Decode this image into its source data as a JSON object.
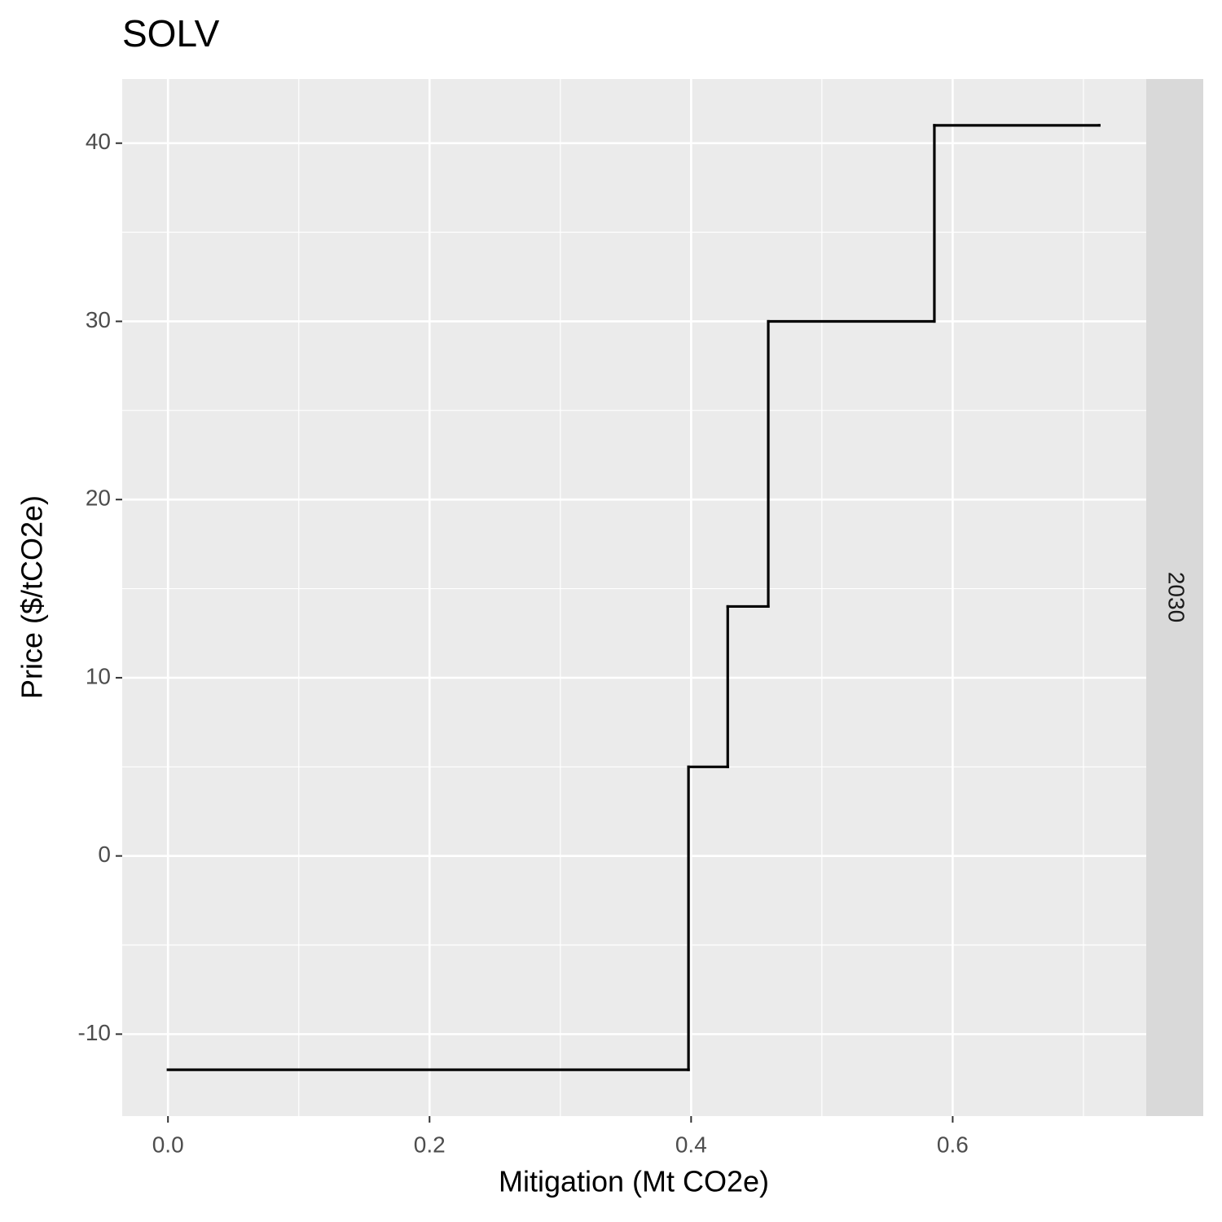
{
  "chart_data": {
    "type": "step",
    "step": "hv",
    "title": "SOLV",
    "x_label": "Mitigation (Mt CO2e)",
    "y_label": "Price ($/tCO2e)",
    "facet": "2030",
    "x": [
      0,
      0.398,
      0.428,
      0.459,
      0.586,
      0.712
    ],
    "series": [
      {
        "color": "#000000",
        "values": [
          -12,
          5,
          14,
          30,
          41,
          41
        ]
      }
    ],
    "xlim": [
      -0.035,
      0.748
    ],
    "xticks": [
      {
        "value": 0,
        "label": "0.0"
      },
      0.2,
      0.4,
      0.6
    ],
    "ylim": [
      -14.6,
      43.6
    ],
    "yticks": [
      -10,
      0,
      10,
      20,
      30,
      40
    ],
    "grid": true
  }
}
